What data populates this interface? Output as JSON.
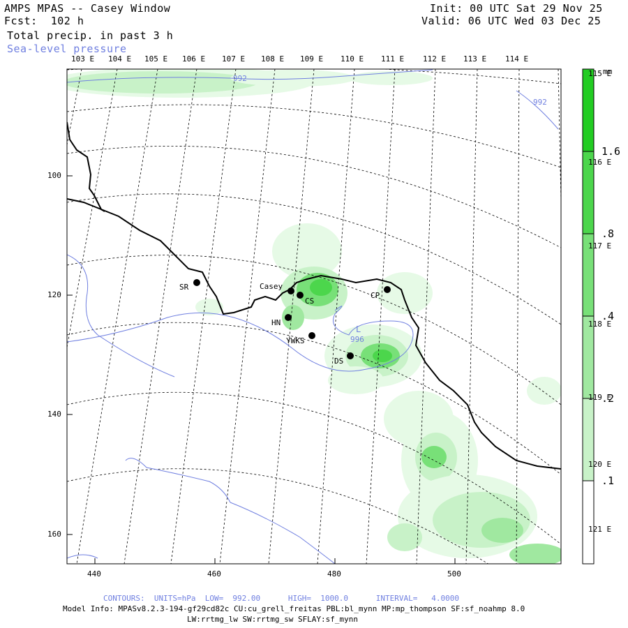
{
  "header": {
    "title": "AMPS MPAS -- Casey Window",
    "forecast": "Fcst:  102 h",
    "field": "Total precip. in past 3 h",
    "overlay": "Sea-level pressure",
    "init": "Init: 00 UTC Sat 29 Nov 25",
    "valid": "Valid: 06 UTC Wed 03 Dec 25"
  },
  "lon_top_labels": [
    "103 E",
    "104 E",
    "105 E",
    "106 E",
    "107 E",
    "108 E",
    "109 E",
    "110 E",
    "111 E",
    "112 E",
    "113 E",
    "114 E"
  ],
  "lon_right_labels": [
    "115 E",
    "116 E",
    "117 E",
    "118 E",
    "119 E",
    "120 E",
    "121 E"
  ],
  "x_axis_ticks": [
    "440",
    "460",
    "480",
    "500"
  ],
  "y_axis_ticks": [
    "100",
    "120",
    "140",
    "160"
  ],
  "colorbar": {
    "unit": "mm",
    "labels": [
      "1.6",
      ".8",
      ".4",
      ".2",
      ".1"
    ],
    "colors": [
      "#ffffff",
      "#e6fae6",
      "#c8f2c8",
      "#a0e8a0",
      "#78e078",
      "#4cd64c",
      "#22cc22"
    ]
  },
  "pressure_labels": [
    "992",
    "992",
    "996"
  ],
  "low_marker": "L",
  "stations": [
    {
      "code": "SR"
    },
    {
      "code": "Casey"
    },
    {
      "code": "CS"
    },
    {
      "code": "HN"
    },
    {
      "code": "YWKS"
    },
    {
      "code": "DS"
    },
    {
      "code": "CP"
    }
  ],
  "footer": {
    "contours": "CONTOURS:  UNITS=hPa  LOW=  992.00      HIGH=  1000.0      INTERVAL=   4.0000",
    "model_info_1": "Model Info: MPASv8.2.3-194-gf29cd82c CU:cu_grell_freitas PBL:bl_mynn MP:mp_thompson SF:sf_noahmp 8.0",
    "model_info_2": "LW:rrtmg_lw SW:rrtmg_sw SFLAY:sf_mynn"
  }
}
